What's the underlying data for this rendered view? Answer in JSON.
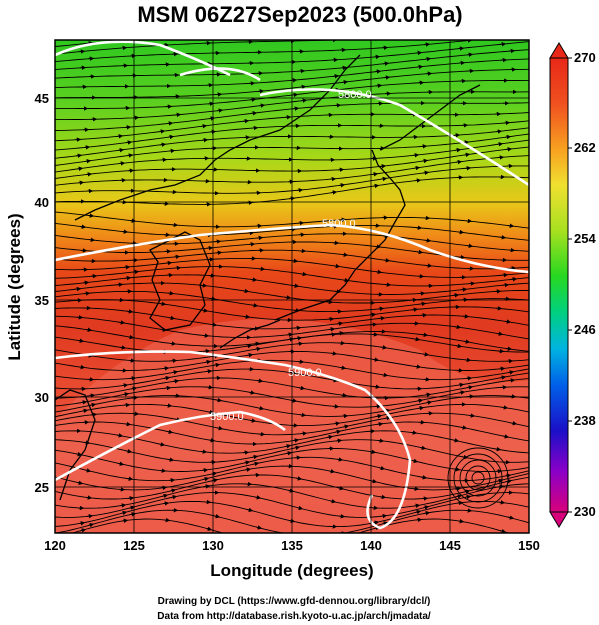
{
  "title": "MSM 06Z27Sep2023 (500.0hPa)",
  "axes": {
    "xlabel": "Longitude (degrees)",
    "ylabel": "Latitude  (degrees)",
    "x_ticks": [
      "120",
      "125",
      "130",
      "135",
      "140",
      "145",
      "150"
    ],
    "y_ticks": [
      "25",
      "30",
      "35",
      "40",
      "45"
    ],
    "xlim": [
      120,
      150
    ],
    "ylim": [
      22.4,
      47.6
    ]
  },
  "colorbar": {
    "ticks": [
      "270",
      "262",
      "254",
      "246",
      "238",
      "230"
    ],
    "range": [
      230,
      270
    ],
    "colors": [
      "#d8007a",
      "#8a00c8",
      "#1a10c8",
      "#0060e8",
      "#00b4e0",
      "#00d080",
      "#28d820",
      "#a8e020",
      "#f0e030",
      "#f8a020",
      "#f05020",
      "#e82818"
    ]
  },
  "contours": {
    "labels": [
      "5800.0",
      "5800.0",
      "5900.0",
      "5900.0"
    ],
    "color": "#ffffff"
  },
  "credits": {
    "line1": "Drawing by DCL (https://www.gfd-dennou.org/library/dcl/)",
    "line2": "Data from http://database.rish.kyoto-u.ac.jp/arch/jmadata/"
  },
  "chart_data": {
    "type": "heatmap",
    "variable": "temperature field with wind streamlines and geopotential height contours",
    "title": "MSM 06Z27Sep2023 (500.0hPa)",
    "xlabel": "Longitude (degrees)",
    "ylabel": "Latitude  (degrees)",
    "xlim": [
      120,
      150
    ],
    "ylim": [
      22.4,
      47.6
    ],
    "color_range": [
      230,
      270
    ],
    "grid": true,
    "contour_levels": [
      5800.0,
      5900.0
    ]
  }
}
